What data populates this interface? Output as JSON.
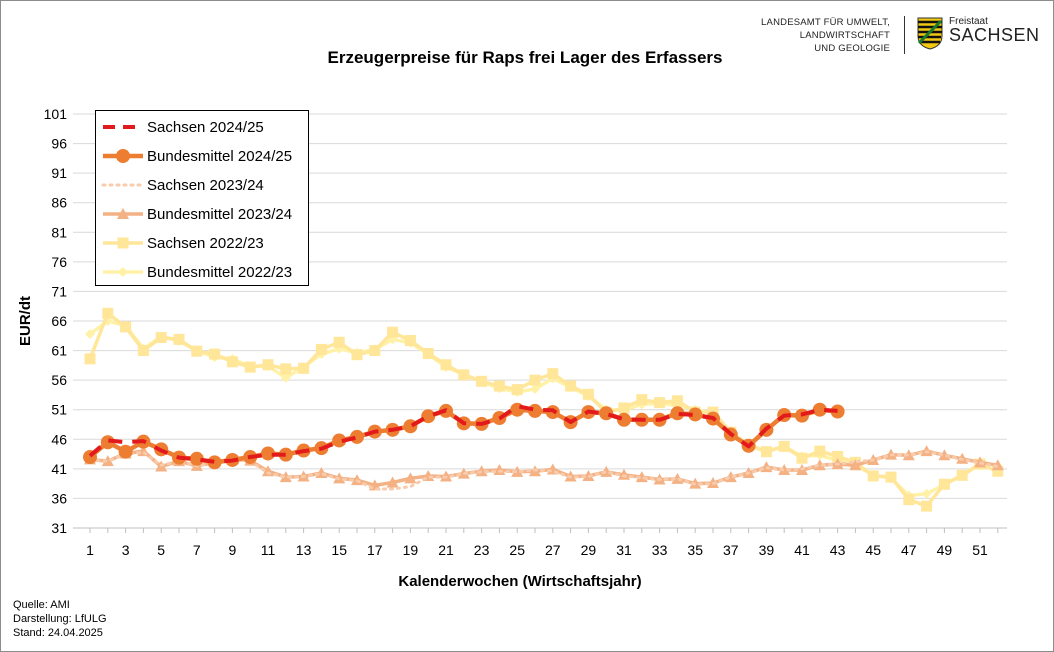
{
  "header": {
    "logo_lines": [
      "LANDESAMT FÜR UMWELT,",
      "LANDWIRTSCHAFT",
      "UND GEOLOGIE"
    ],
    "freistaat": "Freistaat",
    "sachsen": "SACHSEN"
  },
  "footer": {
    "lines": [
      "Quelle: AMI",
      "Darstellung: LfULG",
      "Stand: 24.04.2025"
    ]
  },
  "chart_data": {
    "type": "line",
    "title": "Erzeugerpreise für Raps frei Lager des Erfassers",
    "xlabel": "Kalenderwochen (Wirtschaftsjahr)",
    "ylabel": "EUR/dt",
    "xlim": [
      1,
      52
    ],
    "ylim": [
      31,
      101
    ],
    "yticks": [
      31,
      36,
      41,
      46,
      51,
      56,
      61,
      66,
      71,
      76,
      81,
      86,
      91,
      96,
      101
    ],
    "xticks": [
      1,
      3,
      5,
      7,
      9,
      11,
      13,
      15,
      17,
      19,
      21,
      23,
      25,
      27,
      29,
      31,
      33,
      35,
      37,
      39,
      41,
      43,
      45,
      47,
      49,
      51
    ],
    "grid": "horizontal",
    "legend_position": "top-left",
    "series": [
      {
        "name": "Sachsen 2024/25",
        "color": "#e31a1c",
        "style": "dashed",
        "marker": "none",
        "x": [
          1,
          2,
          3,
          4,
          5,
          6,
          7,
          8,
          9,
          10,
          11,
          12,
          13,
          14,
          15,
          16,
          17,
          18,
          19,
          20,
          21,
          22,
          23,
          24,
          25,
          26,
          27,
          28,
          29,
          30,
          31,
          32,
          33,
          34,
          35,
          36,
          37,
          38,
          39,
          40,
          41,
          42,
          43
        ],
        "y": [
          43.2,
          45.8,
          45.5,
          45.7,
          44.1,
          42.9,
          42.6,
          42.2,
          42.4,
          43.0,
          43.4,
          43.4,
          44.0,
          44.4,
          45.6,
          46.3,
          47.3,
          47.6,
          48.2,
          49.9,
          50.9,
          48.7,
          48.6,
          49.5,
          51.6,
          51.0,
          50.9,
          48.9,
          50.7,
          50.3,
          49.4,
          49.3,
          49.3,
          50.3,
          50.1,
          49.6,
          46.9,
          44.8,
          47.8,
          50.0,
          50.2,
          51.0,
          50.8
        ]
      },
      {
        "name": "Bundesmittel 2024/25",
        "color": "#ed7d31",
        "style": "solid",
        "marker": "circle",
        "x": [
          1,
          2,
          3,
          4,
          5,
          6,
          7,
          8,
          9,
          10,
          11,
          12,
          13,
          14,
          15,
          16,
          17,
          18,
          19,
          20,
          21,
          22,
          23,
          24,
          25,
          26,
          27,
          28,
          29,
          30,
          31,
          32,
          33,
          34,
          35,
          36,
          37,
          38,
          39,
          40,
          41,
          42,
          43
        ],
        "y": [
          43.0,
          45.5,
          43.9,
          45.6,
          44.3,
          42.9,
          42.7,
          42.1,
          42.5,
          43.0,
          43.6,
          43.4,
          44.1,
          44.5,
          45.8,
          46.4,
          47.3,
          47.6,
          48.2,
          49.9,
          50.8,
          48.7,
          48.6,
          49.6,
          51.0,
          50.8,
          50.6,
          48.9,
          50.6,
          50.4,
          49.3,
          49.3,
          49.3,
          50.4,
          50.2,
          49.5,
          46.8,
          44.9,
          47.6,
          50.1,
          50.0,
          51.0,
          50.7
        ]
      },
      {
        "name": "Sachsen 2023/24",
        "color": "#f8cbad",
        "style": "dotted",
        "marker": "none",
        "x": [
          1,
          2,
          3,
          4,
          5,
          6,
          7,
          8,
          9,
          10,
          11,
          12,
          13,
          14,
          15,
          16,
          17,
          18,
          19,
          20,
          21,
          22,
          23,
          24,
          25,
          26,
          27,
          28,
          29,
          30,
          31,
          32,
          33,
          34,
          35,
          36,
          37,
          38,
          39,
          40,
          41,
          42,
          43,
          44,
          45,
          46,
          47,
          48,
          49,
          50,
          51,
          52
        ],
        "y": [
          42.5,
          42.3,
          43.5,
          43.8,
          41.6,
          42.3,
          41.5,
          42.0,
          42.6,
          42.3,
          40.3,
          39.6,
          39.7,
          40.2,
          39.3,
          39.0,
          37.6,
          37.6,
          38.0,
          39.6,
          39.6,
          40.2,
          40.5,
          40.6,
          40.5,
          40.8,
          40.6,
          39.6,
          39.7,
          40.5,
          39.8,
          39.5,
          39.2,
          39.3,
          38.4,
          38.5,
          39.6,
          40.3,
          41.2,
          40.8,
          41.0,
          41.6,
          41.8,
          42.2,
          42.5,
          43.4,
          43.3,
          43.9,
          43.3,
          42.6,
          42.0,
          41.4
        ]
      },
      {
        "name": "Bundesmittel 2023/24",
        "color": "#f4b183",
        "style": "solid",
        "marker": "triangle",
        "x": [
          1,
          2,
          3,
          4,
          5,
          6,
          7,
          8,
          9,
          10,
          11,
          12,
          13,
          14,
          15,
          16,
          17,
          18,
          19,
          20,
          21,
          22,
          23,
          24,
          25,
          26,
          27,
          28,
          29,
          30,
          31,
          32,
          33,
          34,
          35,
          36,
          37,
          38,
          39,
          40,
          41,
          42,
          43,
          44,
          45,
          46,
          47,
          48,
          49,
          50,
          51,
          52
        ],
        "y": [
          42.6,
          42.3,
          43.6,
          44.0,
          41.4,
          42.3,
          41.5,
          42.1,
          42.6,
          42.4,
          40.6,
          39.6,
          39.7,
          40.3,
          39.4,
          39.1,
          38.2,
          38.7,
          39.4,
          39.8,
          39.7,
          40.2,
          40.6,
          40.8,
          40.5,
          40.6,
          40.9,
          39.7,
          39.8,
          40.5,
          40.0,
          39.6,
          39.2,
          39.3,
          38.5,
          38.6,
          39.6,
          40.3,
          41.3,
          40.8,
          40.8,
          41.6,
          41.8,
          41.6,
          42.5,
          43.4,
          43.3,
          44.0,
          43.3,
          42.7,
          42.1,
          41.6
        ]
      },
      {
        "name": "Sachsen 2022/23",
        "color": "#ffe699",
        "style": "solid",
        "marker": "square",
        "x": [
          1,
          2,
          3,
          4,
          5,
          6,
          7,
          8,
          9,
          10,
          11,
          12,
          13,
          14,
          15,
          16,
          17,
          18,
          19,
          20,
          21,
          22,
          23,
          24,
          25,
          26,
          27,
          28,
          29,
          30,
          31,
          32,
          33,
          34,
          35,
          36,
          37,
          38,
          39,
          40,
          41,
          42,
          43,
          44,
          45,
          46,
          47,
          48,
          49,
          50,
          51,
          52
        ],
        "y": [
          59.6,
          67.3,
          65.0,
          61.0,
          63.2,
          62.9,
          60.9,
          60.4,
          59.1,
          58.2,
          58.6,
          57.9,
          58.0,
          61.2,
          62.4,
          60.3,
          61.0,
          64.1,
          62.7,
          60.5,
          58.6,
          56.9,
          55.8,
          55.0,
          54.4,
          56.0,
          57.1,
          55.0,
          53.6,
          50.5,
          51.3,
          52.7,
          52.2,
          52.5,
          50.6,
          50.6,
          47.2,
          45.0,
          43.9,
          44.8,
          42.8,
          44.0,
          43.1,
          42.1,
          39.8,
          39.6,
          35.8,
          34.7,
          38.4,
          39.9,
          41.8,
          40.6
        ]
      },
      {
        "name": "Bundesmittel 2022/23",
        "color": "#fff2a8",
        "style": "solid",
        "marker": "diamond",
        "x": [
          1,
          2,
          3,
          4,
          5,
          6,
          7,
          8,
          9,
          10,
          11,
          12,
          13,
          14,
          15,
          16,
          17,
          18,
          19,
          20,
          21,
          22,
          23,
          24,
          25,
          26,
          27,
          28,
          29,
          30,
          31,
          32,
          33,
          34,
          35,
          36,
          37,
          38,
          39,
          40,
          41,
          42,
          43,
          44,
          45,
          46,
          47,
          48,
          49,
          50,
          51,
          52
        ],
        "y": [
          63.8,
          66.0,
          65.2,
          61.3,
          63.4,
          62.6,
          61.0,
          59.9,
          59.6,
          58.3,
          58.4,
          56.4,
          58.2,
          60.4,
          61.3,
          60.6,
          61.2,
          62.9,
          62.3,
          60.4,
          58.2,
          57.0,
          55.7,
          54.6,
          54.0,
          54.5,
          56.3,
          54.8,
          53.3,
          51.0,
          50.9,
          51.9,
          52.1,
          51.7,
          51.0,
          50.4,
          47.0,
          45.0,
          44.0,
          44.8,
          43.1,
          43.3,
          42.4,
          41.6,
          40.0,
          39.4,
          36.5,
          36.8,
          38.3,
          40.0,
          41.8,
          40.6
        ]
      }
    ]
  }
}
